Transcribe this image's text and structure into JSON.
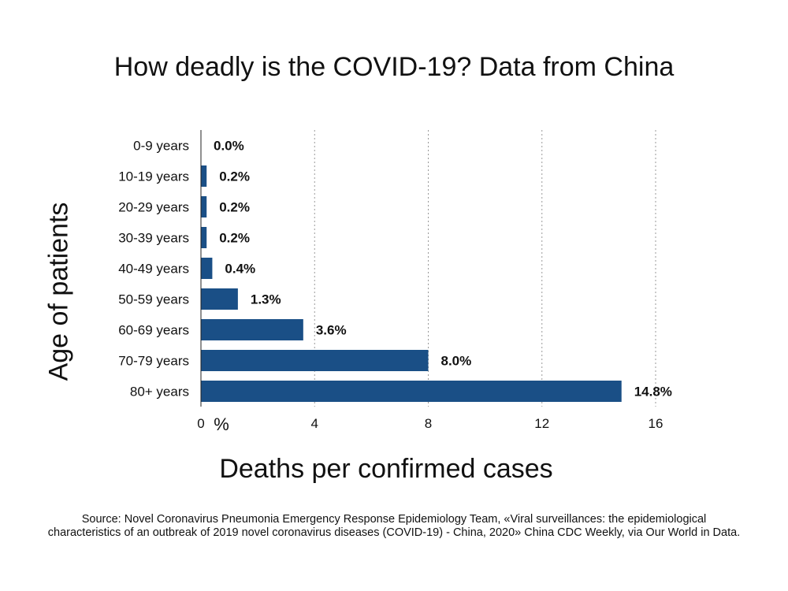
{
  "chart_data": {
    "type": "bar",
    "orientation": "horizontal",
    "title": "How deadly is the COVID-19? Data from China",
    "xlabel": "Deaths per confirmed cases",
    "ylabel": "Age of patients",
    "x_unit": "%",
    "categories": [
      "0-9 years",
      "10-19 years",
      "20-29 years",
      "30-39 years",
      "40-49 years",
      "50-59 years",
      "60-69 years",
      "70-79 years",
      "80+ years"
    ],
    "values": [
      0.0,
      0.2,
      0.2,
      0.2,
      0.4,
      1.3,
      3.6,
      8.0,
      14.8
    ],
    "value_labels": [
      "0.0%",
      "0.2%",
      "0.2%",
      "0.2%",
      "0.4%",
      "1.3%",
      "3.6%",
      "8.0%",
      "14.8%"
    ],
    "xlim": [
      0,
      16
    ],
    "xticks": [
      0,
      4,
      8,
      12,
      16
    ],
    "grid": "vertical dotted",
    "bar_color": "#1a4f86"
  },
  "source": "Source: Novel Coronavirus Pneumonia Emergency Response Epidemiology Team, «Viral surveillances: the epidemiological characteristics of an outbreak of 2019 novel coronavirus diseases (COVID-19) - China, 2020» China CDC Weekly, via Our World in Data."
}
